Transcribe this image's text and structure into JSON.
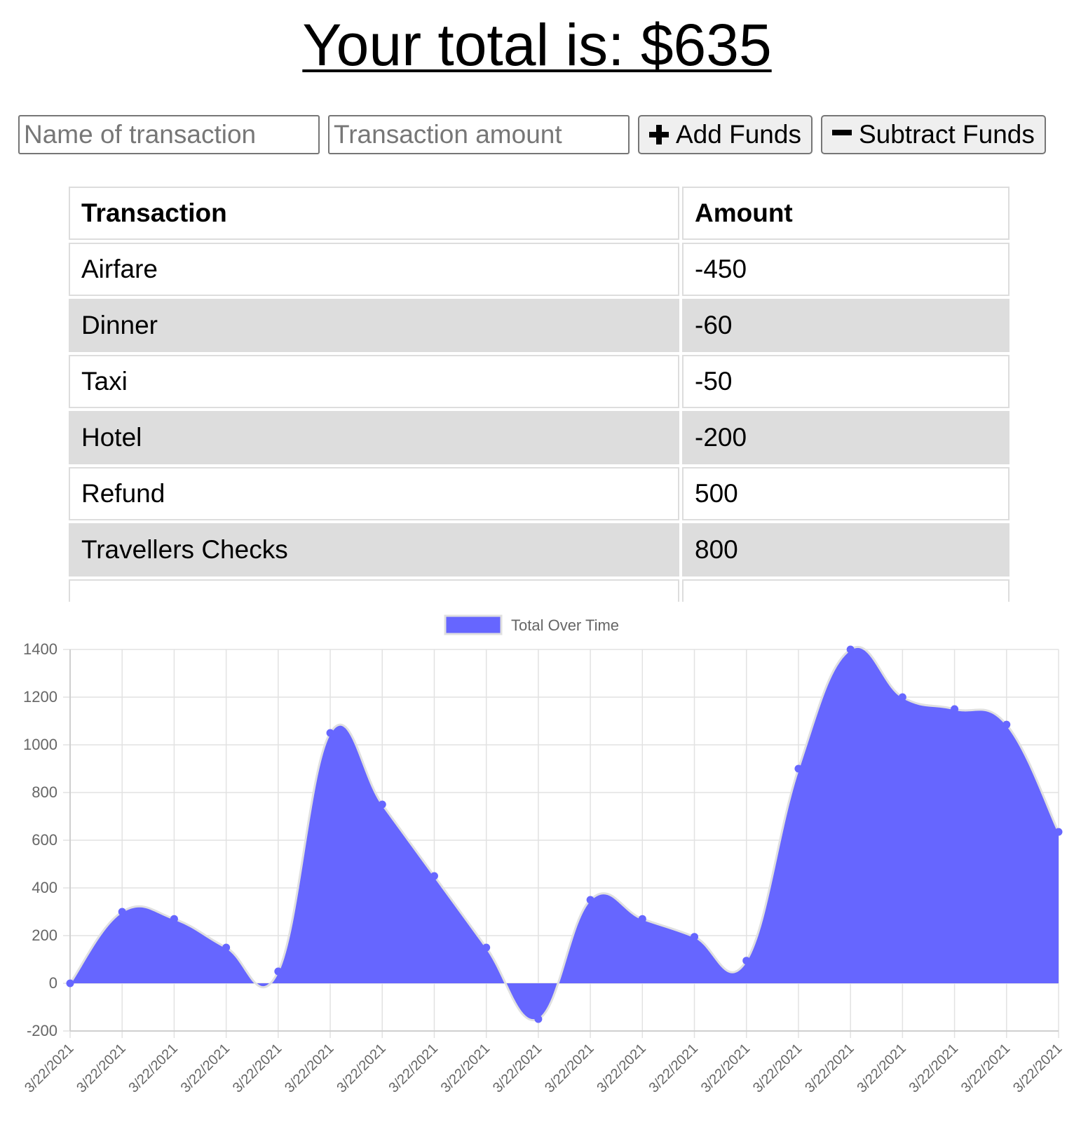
{
  "header": {
    "title": "Your total is: $635"
  },
  "form": {
    "name_placeholder": "Name of transaction",
    "amount_placeholder": "Transaction amount",
    "add_label": "Add Funds",
    "subtract_label": "Subtract Funds",
    "add_icon": "plus-icon",
    "subtract_icon": "minus-icon"
  },
  "table": {
    "headers": [
      "Transaction",
      "Amount"
    ],
    "rows": [
      {
        "name": "Airfare",
        "amount": "-450"
      },
      {
        "name": "Dinner",
        "amount": "-60"
      },
      {
        "name": "Taxi",
        "amount": "-50"
      },
      {
        "name": "Hotel",
        "amount": "-200"
      },
      {
        "name": "Refund",
        "amount": "500"
      },
      {
        "name": "Travellers Checks",
        "amount": "800"
      }
    ]
  },
  "chart_data": {
    "type": "area",
    "legend": {
      "label": "Total Over Time",
      "position": "top"
    },
    "fill_color": "#6666ff",
    "line_color": "#e0e0e0",
    "x": [
      "3/22/2021",
      "3/22/2021",
      "3/22/2021",
      "3/22/2021",
      "3/22/2021",
      "3/22/2021",
      "3/22/2021",
      "3/22/2021",
      "3/22/2021",
      "3/22/2021",
      "3/22/2021",
      "3/22/2021",
      "3/22/2021",
      "3/22/2021",
      "3/22/2021",
      "3/22/2021",
      "3/22/2021",
      "3/22/2021",
      "3/22/2021",
      "3/22/2021"
    ],
    "series": [
      {
        "name": "Total Over Time",
        "values": [
          0,
          300,
          270,
          150,
          50,
          1050,
          750,
          450,
          150,
          -150,
          350,
          270,
          195,
          95,
          900,
          1400,
          1200,
          1150,
          1085,
          635
        ]
      }
    ],
    "ylim": [
      -200,
      1400
    ],
    "yticks": [
      1400,
      1200,
      1000,
      800,
      600,
      400,
      200,
      0,
      -200
    ],
    "grid": true
  }
}
